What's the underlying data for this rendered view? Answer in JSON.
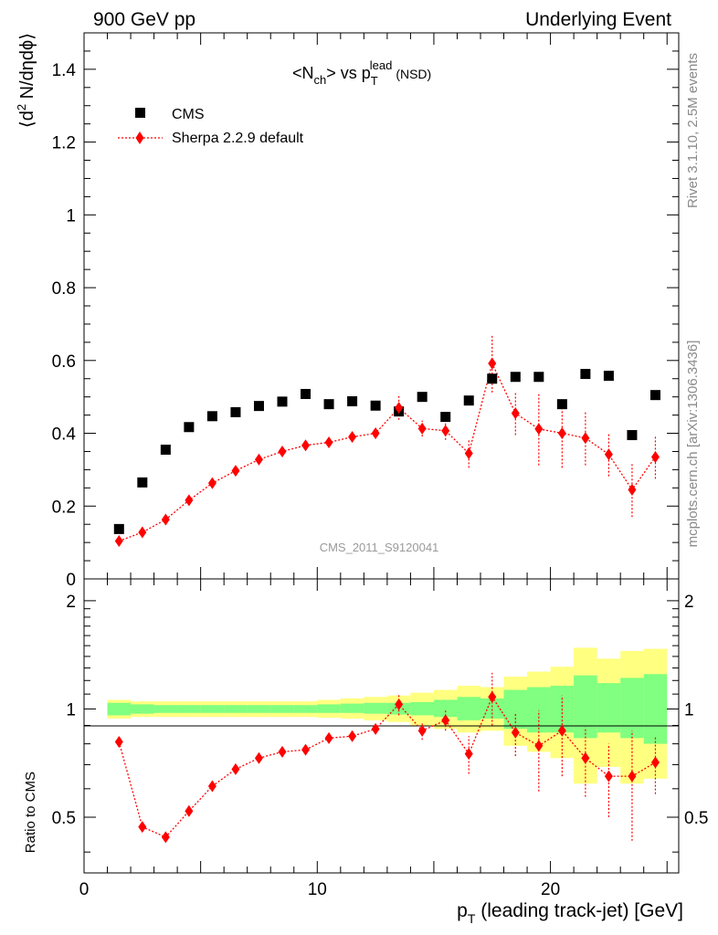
{
  "header": {
    "left": "900 GeV pp",
    "right": "Underlying Event",
    "plot_title": "<N",
    "plot_title_sub": "ch",
    "plot_title_mid": "> vs p",
    "plot_title_sub2": "T",
    "plot_title_sup": "lead",
    "plot_title_end": "(NSD)"
  },
  "side_labels": {
    "rivet": "Rivet 3.1.10,  2.5M events",
    "mcplots": "mcplots.cern.ch [arXiv:1306.3436]"
  },
  "watermark": "CMS_2011_S9120041",
  "colors": {
    "data": "#000000",
    "mc": "#ff0000",
    "band_stat": "#80ff80",
    "band_total": "#ffff80"
  },
  "chart_data": [
    {
      "type": "scatter",
      "panel": "main",
      "ylabel_parts": {
        "pre": "⟨d",
        "sup": "2",
        "post": " N/dηdϕ⟩"
      },
      "xlim": [
        0,
        25.5
      ],
      "ylim": [
        0,
        1.5
      ],
      "yticks": [
        0,
        0.2,
        0.4,
        0.6,
        0.8,
        1,
        1.2,
        1.4
      ],
      "ytick_labels": [
        "0",
        "0.2",
        "0.4",
        "0.6",
        "0.8",
        "1",
        "1.2",
        "1.4"
      ],
      "legend_position": "top-left",
      "series": [
        {
          "name": "CMS",
          "marker": "square",
          "x": [
            1.5,
            2.5,
            3.5,
            4.5,
            5.5,
            6.5,
            7.5,
            8.5,
            9.5,
            10.5,
            11.5,
            12.5,
            13.5,
            14.5,
            15.5,
            16.5,
            17.5,
            18.5,
            19.5,
            20.5,
            21.5,
            22.5,
            23.5,
            24.5
          ],
          "y": [
            0.137,
            0.265,
            0.355,
            0.417,
            0.447,
            0.458,
            0.475,
            0.487,
            0.508,
            0.48,
            0.488,
            0.476,
            0.46,
            0.5,
            0.445,
            0.49,
            0.55,
            0.555,
            0.555,
            0.48,
            0.563,
            0.558,
            0.395,
            0.505
          ]
        },
        {
          "name": "Sherpa 2.2.9 default",
          "marker": "diamond",
          "line": "dotted",
          "x": [
            1.5,
            2.5,
            3.5,
            4.5,
            5.5,
            6.5,
            7.5,
            8.5,
            9.5,
            10.5,
            11.5,
            12.5,
            13.5,
            14.5,
            15.5,
            16.5,
            17.5,
            18.5,
            19.5,
            20.5,
            21.5,
            22.5,
            23.5,
            24.5
          ],
          "y": [
            0.104,
            0.128,
            0.163,
            0.216,
            0.263,
            0.297,
            0.328,
            0.35,
            0.367,
            0.375,
            0.39,
            0.4,
            0.47,
            0.413,
            0.407,
            0.345,
            0.592,
            0.455,
            0.412,
            0.4,
            0.387,
            0.342,
            0.245,
            0.335
          ],
          "err": [
            0.004,
            0.004,
            0.005,
            0.005,
            0.006,
            0.006,
            0.007,
            0.008,
            0.009,
            0.01,
            0.012,
            0.015,
            0.033,
            0.022,
            0.025,
            0.04,
            0.08,
            0.06,
            0.1,
            0.095,
            0.075,
            0.06,
            0.075,
            0.06
          ]
        }
      ]
    },
    {
      "type": "scatter",
      "panel": "ratio",
      "ylabel": "Ratio to CMS",
      "xlabel_parts": {
        "pre": "p",
        "sub": "T",
        "post": " (leading track-jet) [GeV]"
      },
      "xlim": [
        0,
        25.5
      ],
      "ylim": [
        0.35,
        2.3
      ],
      "yticks": [
        0.5,
        1,
        2
      ],
      "ytick_labels": [
        "0.5",
        "1",
        "2"
      ],
      "xticks": [
        0,
        10,
        20
      ],
      "xtick_labels": [
        "0",
        "10",
        "20"
      ],
      "bands": {
        "edges": [
          1,
          2,
          3,
          4,
          5,
          6,
          7,
          8,
          9,
          10,
          11,
          12,
          13,
          14,
          15,
          16,
          17,
          18,
          19,
          20,
          21,
          22,
          23,
          24,
          25
        ],
        "stat_lo": [
          0.96,
          0.97,
          0.975,
          0.975,
          0.975,
          0.975,
          0.975,
          0.975,
          0.975,
          0.975,
          0.975,
          0.97,
          0.965,
          0.96,
          0.95,
          0.93,
          0.94,
          0.88,
          0.86,
          0.86,
          0.83,
          0.86,
          0.83,
          0.8
        ],
        "stat_hi": [
          1.04,
          1.03,
          1.025,
          1.025,
          1.025,
          1.025,
          1.025,
          1.025,
          1.025,
          1.03,
          1.035,
          1.04,
          1.04,
          1.045,
          1.06,
          1.08,
          1.07,
          1.13,
          1.15,
          1.16,
          1.24,
          1.18,
          1.22,
          1.25
        ],
        "total_lo": [
          0.94,
          0.95,
          0.95,
          0.95,
          0.95,
          0.95,
          0.95,
          0.95,
          0.95,
          0.945,
          0.94,
          0.93,
          0.92,
          0.9,
          0.88,
          0.86,
          0.87,
          0.79,
          0.76,
          0.73,
          0.62,
          0.69,
          0.62,
          0.64
        ],
        "total_hi": [
          1.06,
          1.05,
          1.05,
          1.05,
          1.05,
          1.05,
          1.05,
          1.05,
          1.05,
          1.06,
          1.07,
          1.08,
          1.09,
          1.11,
          1.13,
          1.16,
          1.15,
          1.23,
          1.27,
          1.31,
          1.48,
          1.38,
          1.45,
          1.47
        ]
      },
      "series": [
        {
          "name": "Sherpa 2.2.9 default",
          "x": [
            1.5,
            2.5,
            3.5,
            4.5,
            5.5,
            6.5,
            7.5,
            8.5,
            9.5,
            10.5,
            11.5,
            12.5,
            13.5,
            14.5,
            15.5,
            16.5,
            17.5,
            18.5,
            19.5,
            20.5,
            21.5,
            22.5,
            23.5,
            24.5
          ],
          "y": [
            0.81,
            0.47,
            0.44,
            0.52,
            0.61,
            0.68,
            0.73,
            0.76,
            0.77,
            0.83,
            0.84,
            0.88,
            1.03,
            0.87,
            0.93,
            0.75,
            1.08,
            0.86,
            0.79,
            0.87,
            0.73,
            0.65,
            0.65,
            0.71
          ],
          "err": [
            0.01,
            0.01,
            0.01,
            0.01,
            0.012,
            0.012,
            0.013,
            0.015,
            0.018,
            0.02,
            0.025,
            0.03,
            0.07,
            0.05,
            0.06,
            0.09,
            0.18,
            0.12,
            0.2,
            0.22,
            0.16,
            0.15,
            0.22,
            0.13
          ]
        }
      ]
    }
  ]
}
